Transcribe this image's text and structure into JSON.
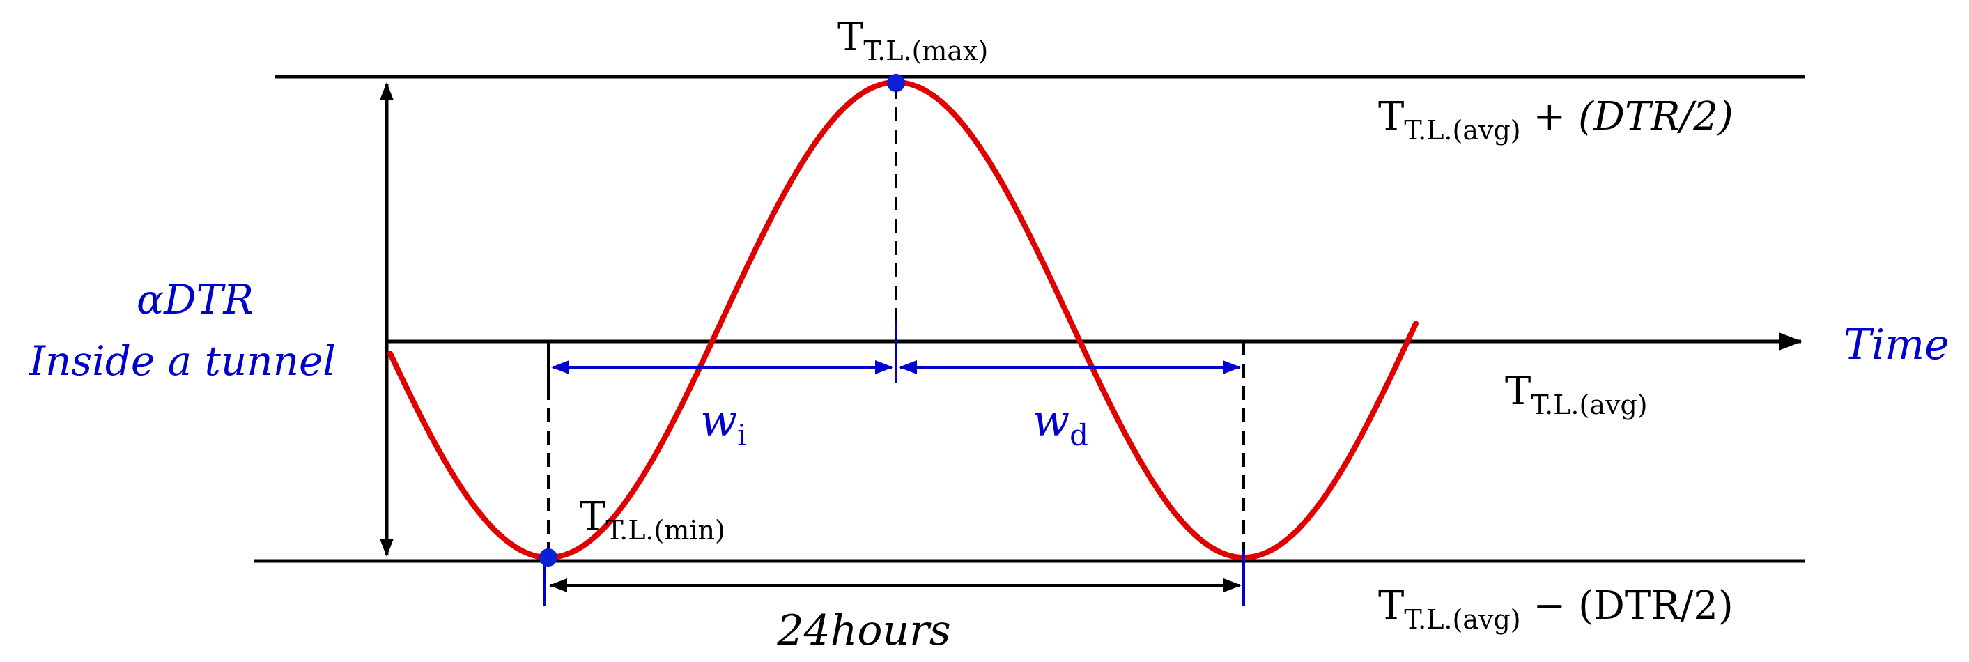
{
  "colors": {
    "curve": "#e00000",
    "annotation": "#0000cc",
    "line": "#000000",
    "marker": "#0a1fd6"
  },
  "labels": {
    "t_max": {
      "base": "T",
      "sub": "T.L.(max)"
    },
    "t_min": {
      "base": "T",
      "sub": "T.L.(min)"
    },
    "t_avg": {
      "base": "T",
      "sub": "T.L.(avg)"
    },
    "upper_level": {
      "base": "T",
      "sub": "T.L.(avg)",
      "rest": " + (DTR/2)"
    },
    "lower_level": {
      "base": "T",
      "sub": "T.L.(avg)",
      "rest": " − (DTR/2)"
    },
    "time_axis": "Time",
    "range_line1": "αDTR",
    "range_line2": "Inside a tunnel",
    "w_i": {
      "base": "w",
      "sub": "i"
    },
    "w_d": {
      "base": "w",
      "sub": "d"
    },
    "period": "24hours"
  }
}
